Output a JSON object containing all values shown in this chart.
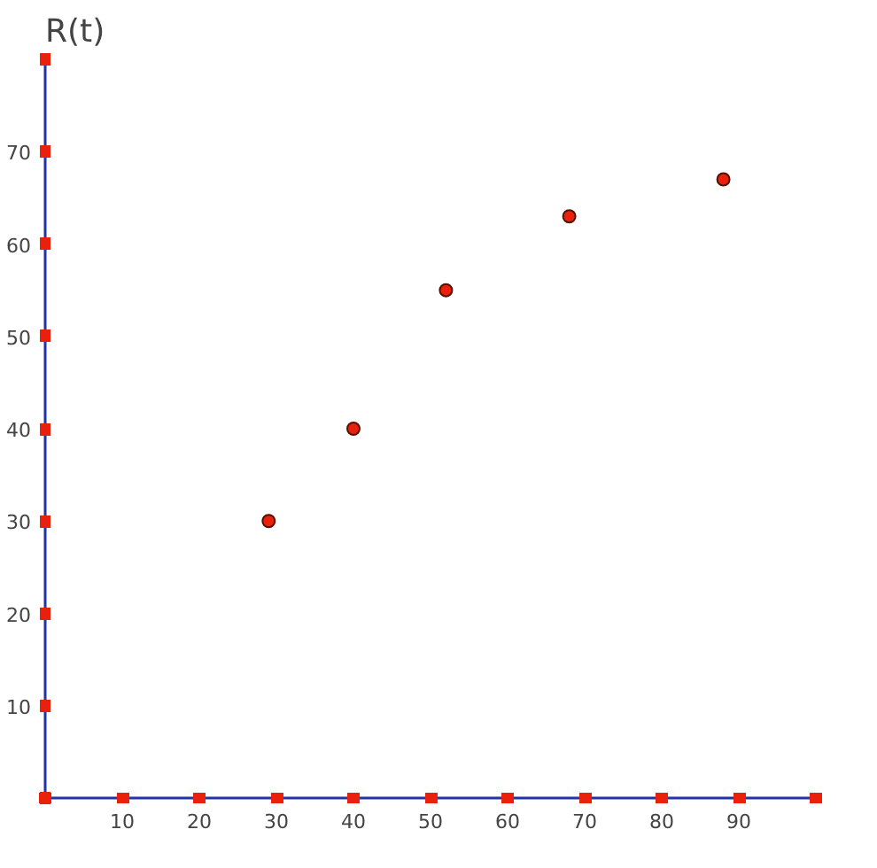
{
  "chart_data": {
    "type": "scatter",
    "title": "R(t)",
    "x": [
      29,
      40,
      52,
      68,
      88
    ],
    "series": [
      {
        "color": "#e8200c",
        "values": [
          30,
          40,
          55,
          63,
          67
        ]
      }
    ],
    "xlim": [
      0,
      100
    ],
    "ylim": [
      0,
      80
    ],
    "xticks": [
      {
        "value": 0,
        "label": null
      },
      10,
      20,
      30,
      40,
      50,
      60,
      70,
      80,
      90,
      {
        "value": 100,
        "label": null
      }
    ],
    "yticks": [
      {
        "value": 0,
        "label": null
      },
      10,
      20,
      30,
      40,
      50,
      60,
      70,
      {
        "value": 80,
        "label": null
      }
    ],
    "marker": "circle"
  }
}
